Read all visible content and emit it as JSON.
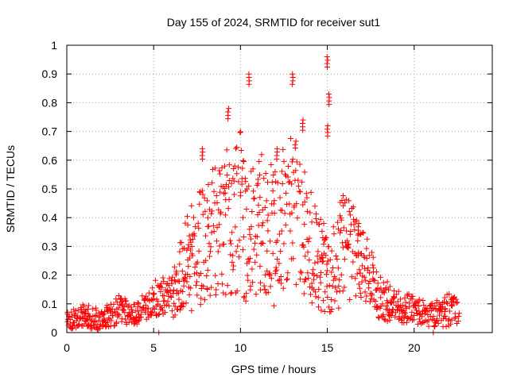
{
  "chart_data": {
    "type": "scatter",
    "title": "Day 155 of 2024, SRMTID for receiver sut1",
    "xlabel": "GPS time / hours",
    "ylabel": "SRMTID / TECUs",
    "xlim": [
      0,
      24.5
    ],
    "ylim": [
      0,
      1
    ],
    "xticks": [
      "0",
      "5",
      "10",
      "15",
      "20"
    ],
    "yticks": [
      "0",
      "0.1",
      "0.2",
      "0.3",
      "0.4",
      "0.5",
      "0.6",
      "0.7",
      "0.8",
      "0.9",
      "1"
    ],
    "grid": true,
    "marker": "plus",
    "color": "#ff0000",
    "series": [
      {
        "name": "SRMTID",
        "envelope": [
          {
            "x": 0.0,
            "y": 0.04,
            "spread": 0.03
          },
          {
            "x": 1.0,
            "y": 0.06,
            "spread": 0.04
          },
          {
            "x": 2.0,
            "y": 0.04,
            "spread": 0.04
          },
          {
            "x": 3.0,
            "y": 0.08,
            "spread": 0.05
          },
          {
            "x": 4.0,
            "y": 0.06,
            "spread": 0.04
          },
          {
            "x": 5.0,
            "y": 0.12,
            "spread": 0.06
          },
          {
            "x": 6.0,
            "y": 0.12,
            "spread": 0.08
          },
          {
            "x": 7.0,
            "y": 0.25,
            "spread": 0.18
          },
          {
            "x": 8.0,
            "y": 0.32,
            "spread": 0.22
          },
          {
            "x": 9.0,
            "y": 0.36,
            "spread": 0.26
          },
          {
            "x": 10.0,
            "y": 0.4,
            "spread": 0.3
          },
          {
            "x": 11.0,
            "y": 0.38,
            "spread": 0.26
          },
          {
            "x": 12.0,
            "y": 0.33,
            "spread": 0.24
          },
          {
            "x": 13.0,
            "y": 0.45,
            "spread": 0.28
          },
          {
            "x": 14.0,
            "y": 0.3,
            "spread": 0.2
          },
          {
            "x": 15.0,
            "y": 0.2,
            "spread": 0.15
          },
          {
            "x": 16.0,
            "y": 0.3,
            "spread": 0.2
          },
          {
            "x": 17.0,
            "y": 0.25,
            "spread": 0.14
          },
          {
            "x": 18.0,
            "y": 0.12,
            "spread": 0.08
          },
          {
            "x": 19.0,
            "y": 0.09,
            "spread": 0.06
          },
          {
            "x": 20.0,
            "y": 0.08,
            "spread": 0.05
          },
          {
            "x": 21.0,
            "y": 0.06,
            "spread": 0.04
          },
          {
            "x": 22.0,
            "y": 0.08,
            "spread": 0.06
          },
          {
            "x": 22.6,
            "y": 0.07,
            "spread": 0.04
          }
        ],
        "peaks": [
          {
            "x": 7.8,
            "y": 0.64
          },
          {
            "x": 9.3,
            "y": 0.78
          },
          {
            "x": 10.5,
            "y": 0.9
          },
          {
            "x": 12.1,
            "y": 0.64
          },
          {
            "x": 13.0,
            "y": 0.9
          },
          {
            "x": 13.6,
            "y": 0.74
          },
          {
            "x": 15.0,
            "y": 0.96
          },
          {
            "x": 15.1,
            "y": 0.83
          },
          {
            "x": 15.0,
            "y": 0.72
          },
          {
            "x": 16.8,
            "y": 0.38
          }
        ],
        "zero_points": [
          {
            "x": 5.3,
            "y": 0.0
          },
          {
            "x": 21.1,
            "y": 0.0
          }
        ]
      }
    ]
  }
}
